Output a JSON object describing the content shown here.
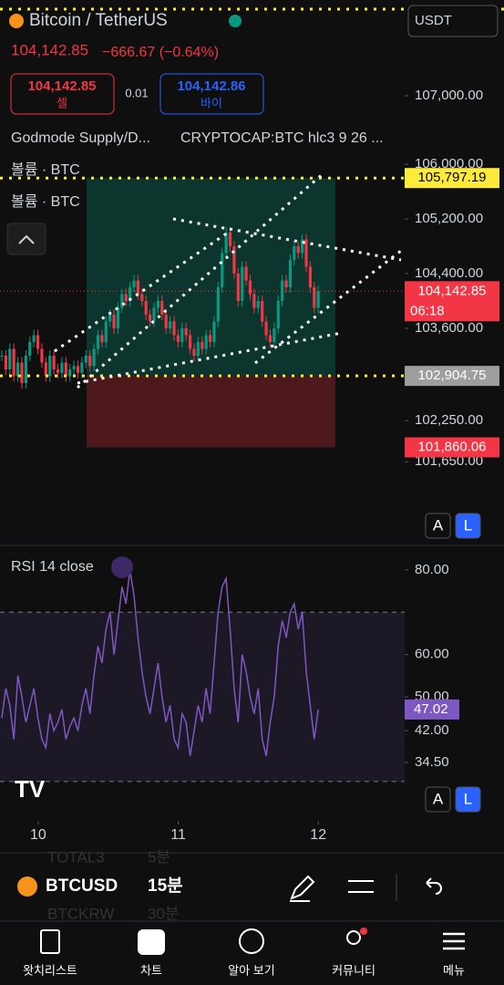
{
  "header": {
    "symbol_title": "Bitcoin / TetherUS",
    "price": "104,142.85",
    "change": "−666.67 (−0.64%)",
    "sell": {
      "price": "104,142.85",
      "label": "셀"
    },
    "spread": "0.01",
    "buy": {
      "price": "104,142.86",
      "label": "바이"
    },
    "indicators": [
      "Godmode Supply/D...",
      "CRYPTOCAP:BTC hlc3 9 26 ..."
    ],
    "volume_labels": [
      "볼륨 · BTC",
      "볼륨 · BTC"
    ],
    "currency": "USDT"
  },
  "chart_data": [
    {
      "type": "candle",
      "up_color": "#089981",
      "down_color": "#f23645",
      "values": [
        103200,
        103000,
        103300,
        102900,
        103100,
        102800,
        103200,
        103400,
        103500,
        103300,
        103100,
        102900,
        103200,
        103000,
        102950,
        103100,
        102900,
        103000,
        103050,
        102950,
        103100,
        103200,
        103050,
        103300,
        103500,
        103400,
        103700,
        103800,
        103600,
        103900,
        104100,
        104000,
        104200,
        104300,
        104100,
        104000,
        103800,
        103700,
        103900,
        104000,
        103800,
        103600,
        103700,
        103500,
        103400,
        103600,
        103500,
        103300,
        103200,
        103400,
        103300,
        103500,
        103400,
        103700,
        104200,
        104700,
        105000,
        104800,
        104400,
        104000,
        104500,
        104300,
        104100,
        103900,
        104000,
        103700,
        103500,
        103400,
        103600,
        104000,
        104300,
        104200,
        104600,
        104800,
        104700,
        104900,
        104500,
        104200,
        103900,
        104142.85
      ],
      "ylim": [
        100440,
        108400
      ],
      "yticks": [
        {
          "value": 107000,
          "label": "107,000.00"
        },
        {
          "value": 106000,
          "label": "106,000.00"
        },
        {
          "value": 105200,
          "label": "105,200.00"
        },
        {
          "value": 104400,
          "label": "104,400.00"
        },
        {
          "value": 103600,
          "label": "103,600.00"
        },
        {
          "value": 102250,
          "label": "102,250.00"
        },
        {
          "value": 101650,
          "label": "101,650.00"
        }
      ],
      "levels": [
        {
          "value": 105797.19,
          "label": "105,797.19",
          "color": "#ffeb3b"
        },
        {
          "value": 104142.85,
          "label": "104,142.85",
          "sub": "06:18",
          "color": "#f23645"
        },
        {
          "value": 102904.75,
          "label": "102,904.75",
          "color": "#9e9e9e"
        },
        {
          "value": 101860.06,
          "label": "101,860.06",
          "color": "#f23645"
        }
      ],
      "buttons": [
        "A",
        "L"
      ]
    },
    {
      "type": "line",
      "title": "RSI 14 close",
      "color": "#7e57c2",
      "values": [
        45,
        52,
        48,
        40,
        55,
        50,
        44,
        48,
        52,
        45,
        40,
        38,
        46,
        42,
        44,
        47,
        40,
        43,
        45,
        42,
        48,
        52,
        46,
        55,
        62,
        58,
        66,
        70,
        60,
        68,
        76,
        72,
        80,
        74,
        64,
        56,
        50,
        46,
        52,
        58,
        50,
        44,
        48,
        40,
        38,
        46,
        44,
        36,
        42,
        48,
        44,
        52,
        46,
        58,
        70,
        76,
        78,
        66,
        52,
        44,
        60,
        56,
        50,
        46,
        52,
        40,
        36,
        44,
        50,
        62,
        68,
        64,
        70,
        72,
        66,
        70,
        56,
        48,
        40,
        47.02
      ],
      "ylim": [
        20.7,
        85.8
      ],
      "yticks": [
        {
          "value": 80,
          "label": "80.00"
        },
        {
          "value": 60,
          "label": "60.00"
        },
        {
          "value": 50,
          "label": "50.00"
        },
        {
          "value": 42,
          "label": "42.00"
        },
        {
          "value": 34.5,
          "label": "34.50"
        }
      ],
      "band": [
        70,
        30
      ],
      "xlim": [
        9.727,
        12.617
      ],
      "xticks": [
        10,
        11,
        12
      ],
      "buttons": [
        "A",
        "L"
      ]
    }
  ],
  "toolbar": {
    "symbol": "BTCUSD",
    "interval": "15분",
    "ghost": [
      "TOTAL3",
      "5분",
      "BTCKRW",
      "30분"
    ]
  },
  "nav": [
    "왓치리스트",
    "차트",
    "알아 보기",
    "커뮤니티",
    "메뉴"
  ]
}
